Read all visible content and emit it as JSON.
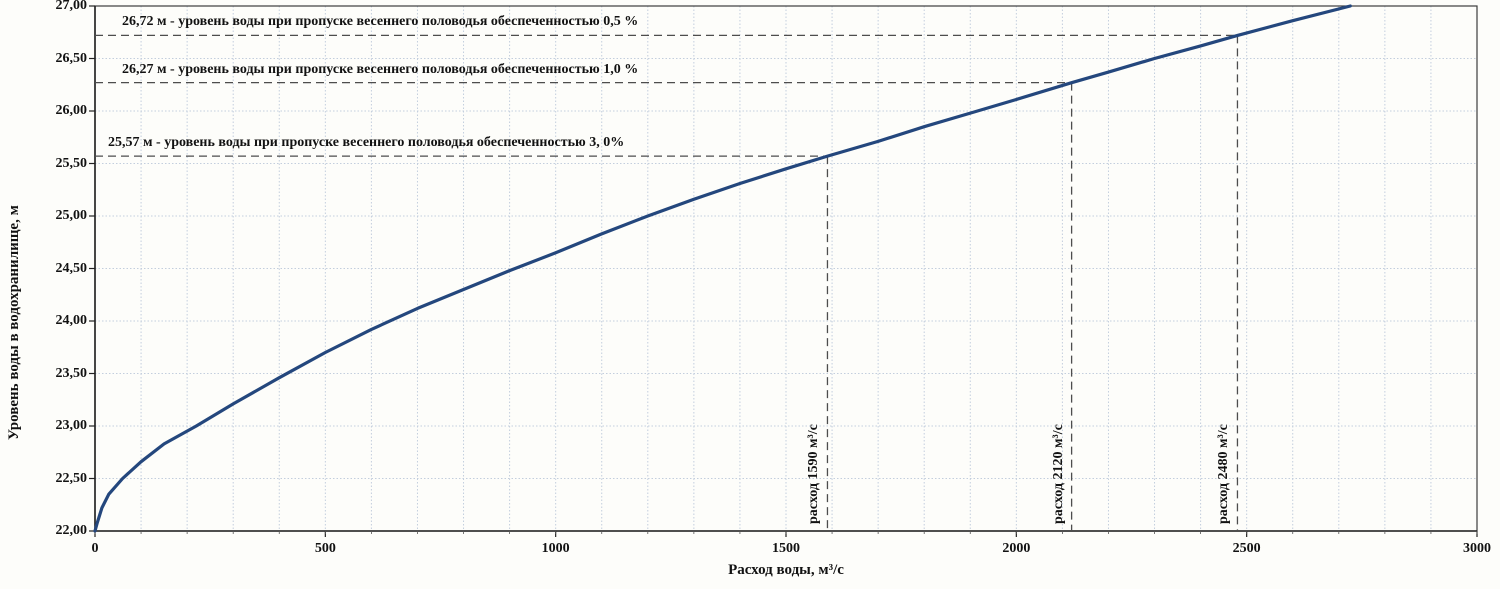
{
  "page": {
    "background": "#fdfdfa"
  },
  "chart_data": {
    "type": "line",
    "title": "",
    "xlabel": "Расход воды, м³/с",
    "ylabel": "Уровень воды в водохранилище, м",
    "xlim": [
      0,
      3000
    ],
    "ylim": [
      22.0,
      27.0
    ],
    "grid": true,
    "x_ticks": [
      0,
      500,
      1000,
      1500,
      2000,
      2500,
      3000
    ],
    "x_tick_labels": [
      "0",
      "500",
      "1000",
      "1500",
      "2000",
      "2500",
      "3000"
    ],
    "y_ticks": [
      22.0,
      22.5,
      23.0,
      23.5,
      24.0,
      24.5,
      25.0,
      25.5,
      26.0,
      26.5,
      27.0
    ],
    "y_tick_labels": [
      "22,00",
      "22,50",
      "23,00",
      "23,50",
      "24,00",
      "24,50",
      "25,00",
      "25,50",
      "26,00",
      "26,50",
      "27,00"
    ],
    "x_minor_grid_step": 100,
    "y_grid_step": 0.5,
    "colors": {
      "curve": "#24477d",
      "grid": "#c3cedd",
      "axis": "#3c3c3c",
      "marker_line": "#4d4d4d",
      "text": "#121212"
    },
    "series": [
      {
        "color": "#24477d",
        "points": [
          [
            0,
            22.0
          ],
          [
            5,
            22.08
          ],
          [
            15,
            22.22
          ],
          [
            30,
            22.35
          ],
          [
            60,
            22.5
          ],
          [
            100,
            22.66
          ],
          [
            150,
            22.83
          ],
          [
            220,
            23.0
          ],
          [
            300,
            23.21
          ],
          [
            400,
            23.46
          ],
          [
            500,
            23.7
          ],
          [
            600,
            23.92
          ],
          [
            700,
            24.12
          ],
          [
            800,
            24.3
          ],
          [
            900,
            24.48
          ],
          [
            1000,
            24.65
          ],
          [
            1100,
            24.83
          ],
          [
            1200,
            25.0
          ],
          [
            1300,
            25.16
          ],
          [
            1400,
            25.31
          ],
          [
            1500,
            25.45
          ],
          [
            1590,
            25.57
          ],
          [
            1700,
            25.71
          ],
          [
            1800,
            25.85
          ],
          [
            1900,
            25.98
          ],
          [
            2000,
            26.11
          ],
          [
            2120,
            26.27
          ],
          [
            2200,
            26.37
          ],
          [
            2300,
            26.5
          ],
          [
            2400,
            26.62
          ],
          [
            2480,
            26.72
          ],
          [
            2600,
            26.86
          ],
          [
            2725,
            27.0
          ]
        ]
      }
    ],
    "markers": [
      {
        "level": 26.72,
        "discharge": 2480,
        "level_label": "26,72 м - уровень воды при пропуске весеннего половодья обеспеченностью 0,5 %",
        "discharge_label": "расход 2480 м³/с"
      },
      {
        "level": 26.27,
        "discharge": 2120,
        "level_label": "26,27 м - уровень воды при пропуске весеннего половодья обеспеченностью 1,0 %",
        "discharge_label": "расход 2120 м³/с"
      },
      {
        "level": 25.57,
        "discharge": 1590,
        "level_label": "25,57 м - уровень воды при пропуске весеннего половодья обеспеченностью 3, 0%",
        "discharge_label": "расход 1590 м³/с"
      }
    ]
  }
}
